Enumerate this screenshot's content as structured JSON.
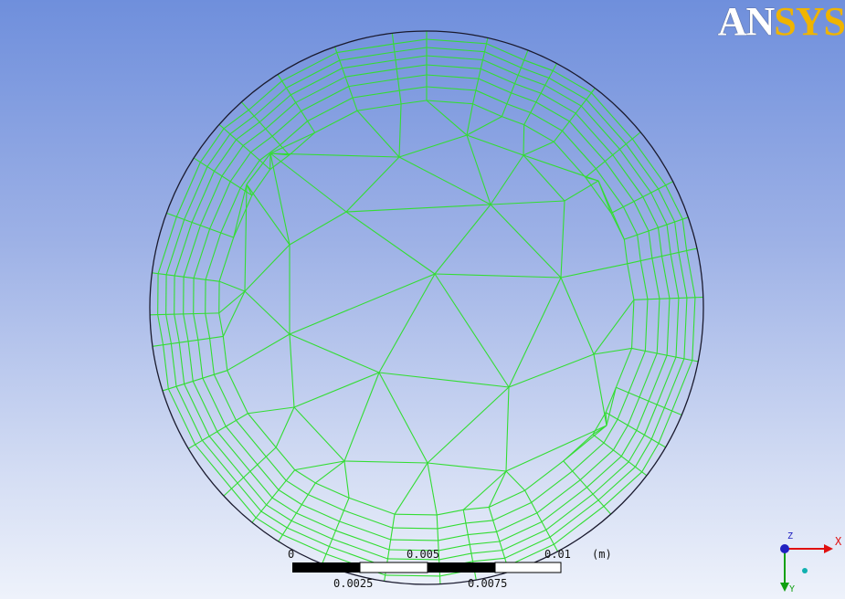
{
  "logo": {
    "text_an": "AN",
    "text_sys": "SYS"
  },
  "colors": {
    "background_top": "#6f8fdc",
    "background_bottom": "#eef2fb",
    "mesh_lines": "#33dd33",
    "boundary": "#1a1a2e"
  },
  "scale_bar": {
    "top_labels": [
      "0",
      "0.005",
      "0.01"
    ],
    "bottom_labels": [
      "0.0025",
      "0.0075"
    ],
    "unit": "(m)"
  },
  "triad": {
    "x_label": "X",
    "y_label": "Y",
    "z_label": "Z"
  }
}
